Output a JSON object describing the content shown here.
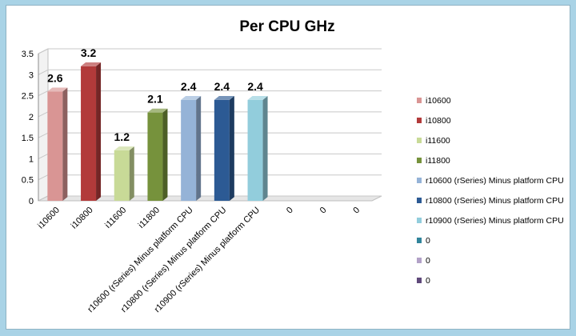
{
  "chart_data": {
    "type": "bar",
    "title": "Per CPU GHz",
    "categories": [
      "i10600",
      "i10800",
      "i11600",
      "i11800",
      "r10600 (rSeries) Minus platform CPU",
      "r10800 (rSeries) Minus platform CPU",
      "r10900 (rSeries) Minus platform CPU",
      "0",
      "0",
      "0"
    ],
    "values": [
      2.6,
      3.2,
      1.2,
      2.1,
      2.4,
      2.4,
      2.4,
      null,
      null,
      null
    ],
    "data_labels": [
      "2.6",
      "3.2",
      "1.2",
      "2.1",
      "2.4",
      "2.4",
      "2.4",
      "",
      "",
      ""
    ],
    "colors": [
      "#d99594",
      "#b23a3a",
      "#c8da97",
      "#76923c",
      "#95b3d7",
      "#2c5a94",
      "#92cddc",
      "#31849b",
      "#b2a1c7",
      "#5f497a"
    ],
    "ylim": [
      0,
      3.5
    ],
    "yticks": [
      "0",
      "0.5",
      "1",
      "1.5",
      "2",
      "2.5",
      "3",
      "3.5"
    ],
    "grid": true,
    "legend_position": "right",
    "legend": [
      "i10600",
      "i10800",
      "i11600",
      "i11800",
      "r10600 (rSeries) Minus platform CPU",
      "r10800 (rSeries) Minus platform CPU",
      "r10900 (rSeries) Minus platform CPU",
      "0",
      "0",
      "0"
    ],
    "xlabel": "",
    "ylabel": ""
  }
}
